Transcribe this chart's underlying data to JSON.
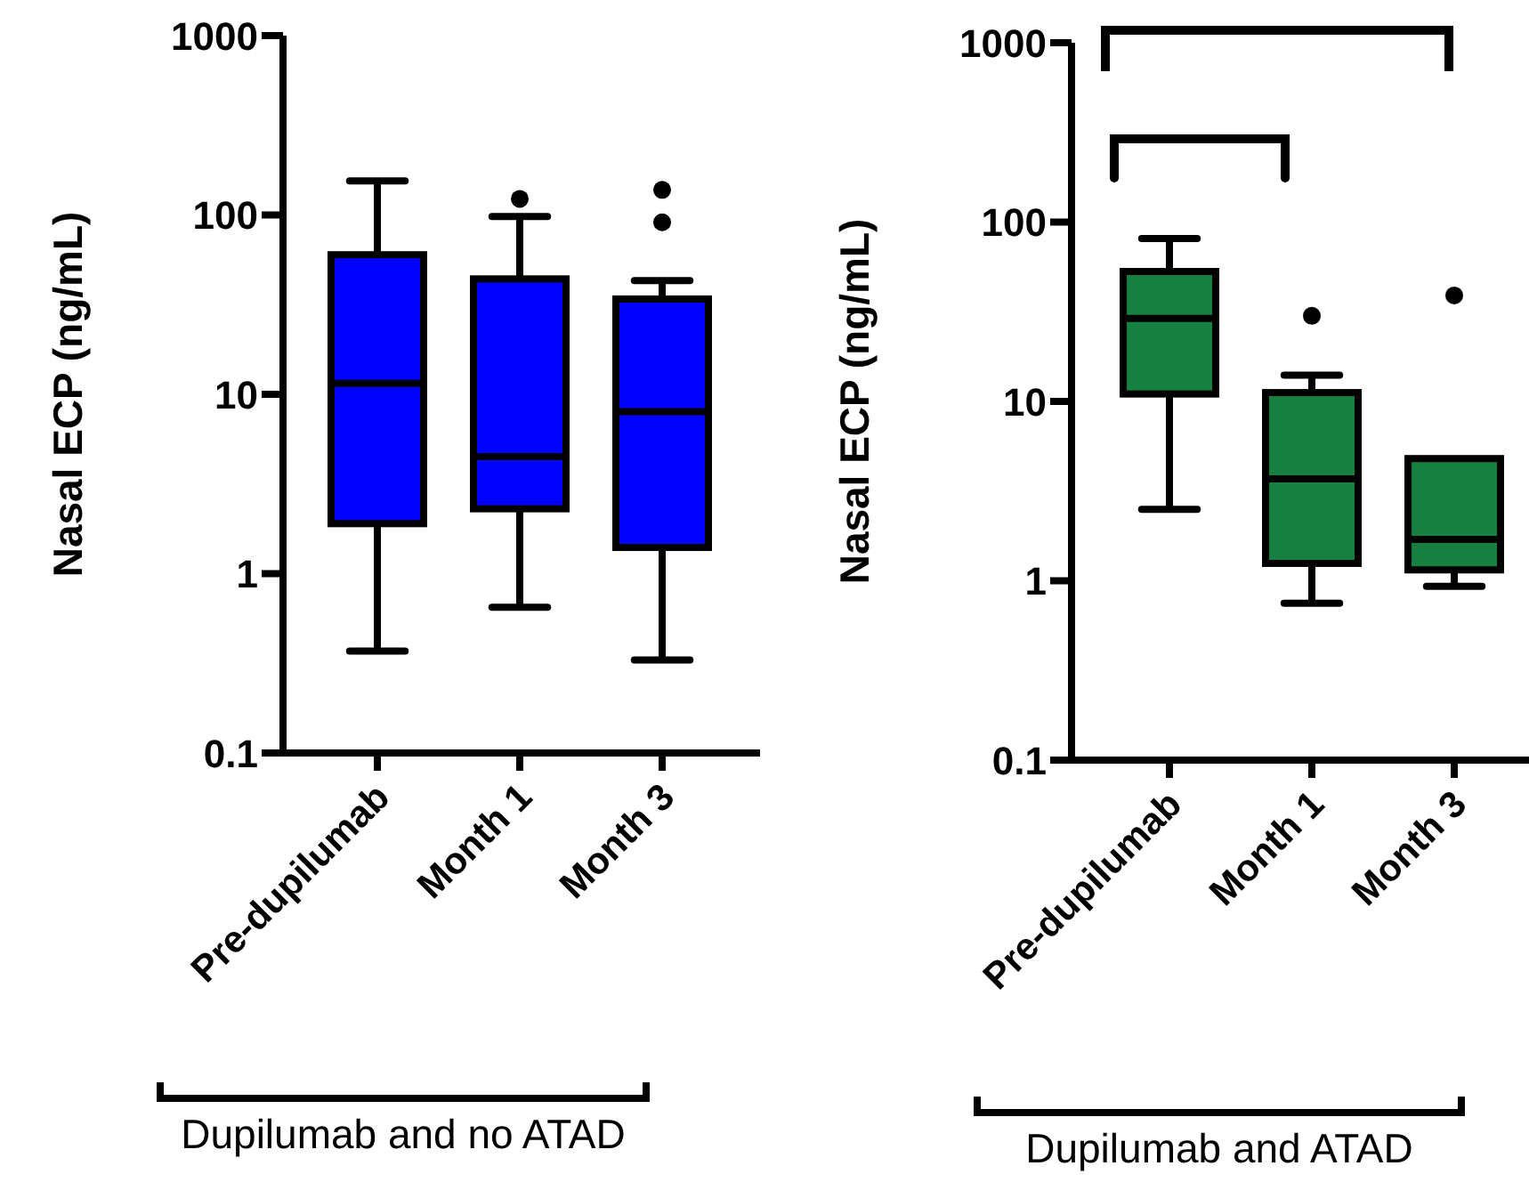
{
  "chart_data": [
    {
      "type": "box",
      "categories": [
        "Pre-dupilumab",
        "Month 1",
        "Month 3"
      ],
      "color": "#0000ff",
      "ylabel": "Nasal ECP (ng/mL)",
      "xlabel": "Dupilumab and no ATAD",
      "log": "y",
      "ylim": [
        0.1,
        1000
      ],
      "yticks": [
        0.1,
        1,
        10,
        100,
        1000
      ],
      "boxes": [
        {
          "low": 0.37,
          "q1": 1.9,
          "median": 11.5,
          "q3": 60,
          "high": 155
        },
        {
          "low": 0.65,
          "q1": 2.3,
          "median": 4.5,
          "q3": 44,
          "high": 98,
          "outliers": [
            123
          ]
        },
        {
          "low": 0.33,
          "q1": 1.4,
          "median": 8,
          "q3": 34,
          "high": 43,
          "outliers": [
            138,
            91
          ]
        }
      ]
    },
    {
      "type": "box",
      "categories": [
        "Pre-dupilumab",
        "Month 1",
        "Month 3"
      ],
      "color": "#168040",
      "ylabel": "Nasal ECP (ng/mL)",
      "xlabel": "Dupilumab and ATAD",
      "log": "y",
      "ylim": [
        0.1,
        1000
      ],
      "yticks": [
        0.1,
        1,
        10,
        100,
        1000
      ],
      "boxes": [
        {
          "low": 2.5,
          "q1": 11,
          "median": 29,
          "q3": 53,
          "high": 81
        },
        {
          "low": 0.75,
          "q1": 1.25,
          "median": 3.7,
          "q3": 11.2,
          "high": 14,
          "outliers": [
            30
          ]
        },
        {
          "low": 0.93,
          "q1": 1.15,
          "median": 1.7,
          "q3": 4.8,
          "high": 4.8,
          "outliers": [
            39
          ]
        }
      ]
    }
  ]
}
